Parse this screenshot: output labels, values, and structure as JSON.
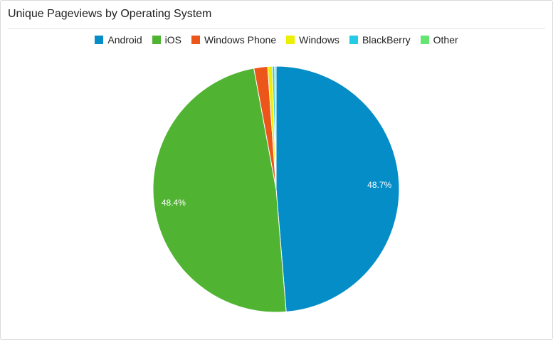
{
  "widget": {
    "title": "Unique Pageviews by Operating System"
  },
  "chart_data": {
    "type": "pie",
    "title": "Unique Pageviews by Operating System",
    "legend_position": "top",
    "slices": [
      {
        "label": "Android",
        "value": 48.7,
        "color": "#058dc7",
        "data_label": "48.7%"
      },
      {
        "label": "iOS",
        "value": 48.4,
        "color": "#50b432",
        "data_label": "48.4%"
      },
      {
        "label": "Windows Phone",
        "value": 1.8,
        "color": "#ed561b",
        "data_label": ""
      },
      {
        "label": "Windows",
        "value": 0.6,
        "color": "#edef00",
        "data_label": ""
      },
      {
        "label": "BlackBerry",
        "value": 0.3,
        "color": "#24cbe5",
        "data_label": ""
      },
      {
        "label": "Other",
        "value": 0.2,
        "color": "#64e572",
        "data_label": ""
      }
    ]
  }
}
